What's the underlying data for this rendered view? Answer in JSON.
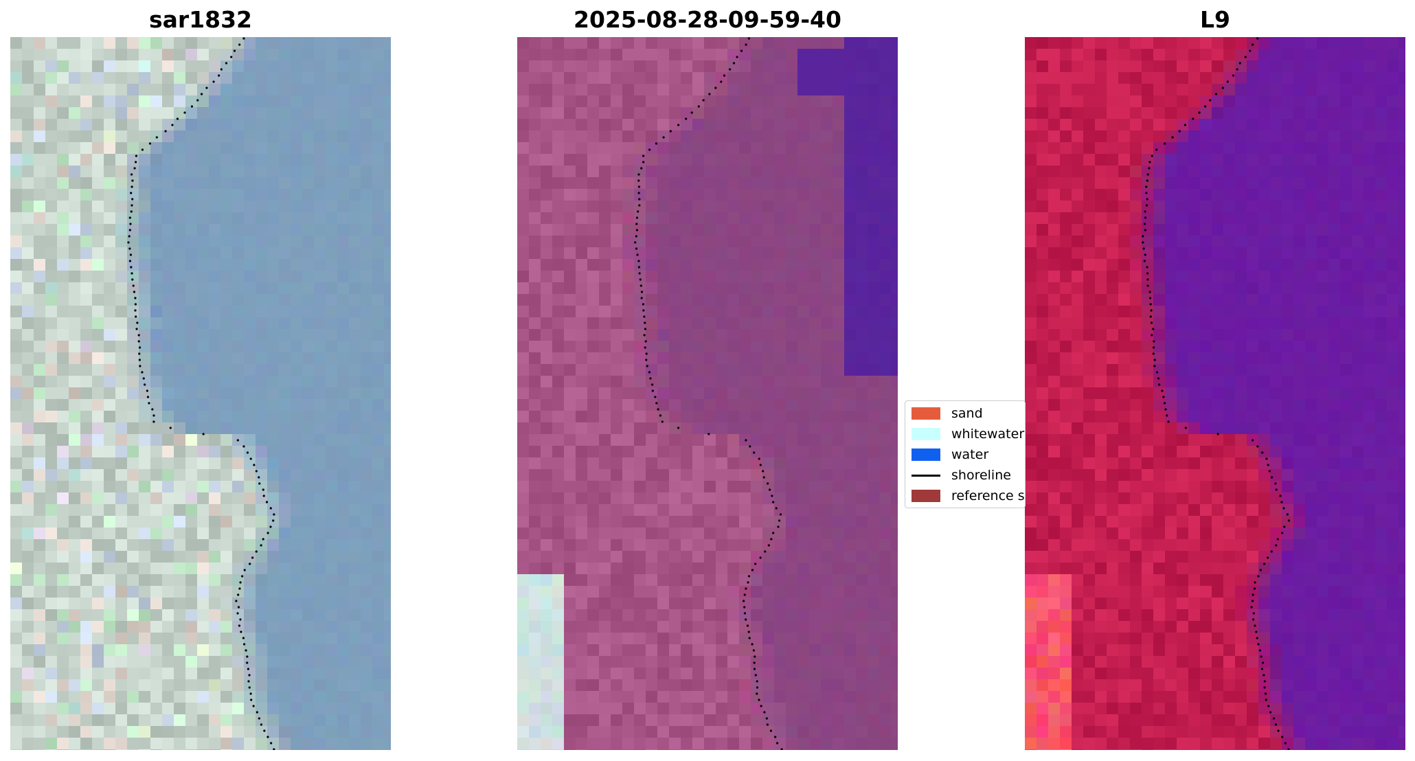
{
  "panels": [
    {
      "title": "sar1832",
      "style": "sar"
    },
    {
      "title": "2025-08-28-09-59-40",
      "style": "classified"
    },
    {
      "title": "L9",
      "style": "falsecolor"
    }
  ],
  "legend": {
    "items": [
      {
        "label": "sand",
        "kind": "patch",
        "color": "#e55c3d"
      },
      {
        "label": "whitewater",
        "kind": "patch",
        "color": "#c8ffff"
      },
      {
        "label": "water",
        "kind": "patch",
        "color": "#1060f0"
      },
      {
        "label": "shoreline",
        "kind": "line",
        "color": "#000000"
      },
      {
        "label": "reference shoreline",
        "kind": "patch",
        "color": "#a0393a"
      }
    ]
  },
  "colors": {
    "sar_land": "#c4d2ca",
    "sar_water": "#7e9fbd",
    "classified_land": "#a85588",
    "classified_water": "#8b4682",
    "classified_deep_water": "#59249c",
    "falsecolor_land": "#c41e50",
    "falsecolor_water": "#6b1ca2",
    "shoreline": "#000000"
  }
}
